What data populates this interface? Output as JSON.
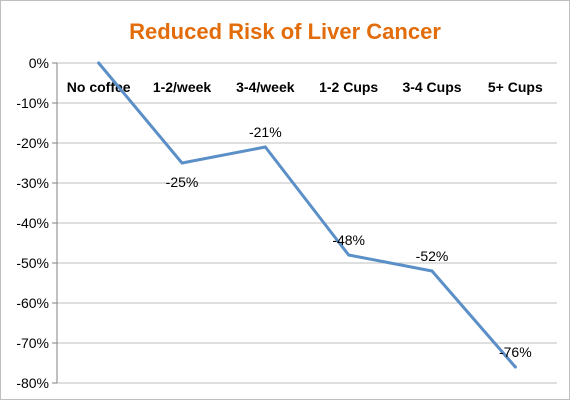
{
  "chart_data": {
    "type": "line",
    "title": "Reduced Risk of Liver Cancer",
    "categories": [
      "No coffee",
      "1-2/week",
      "3-4/week",
      "1-2 Cups",
      "3-4 Cups",
      "5+ Cups"
    ],
    "values": [
      0,
      -25,
      -21,
      -48,
      -52,
      -76
    ],
    "data_labels": [
      "",
      "-25%",
      "-21%",
      "-48%",
      "-52%",
      "-76%"
    ],
    "y_ticks": [
      0,
      -10,
      -20,
      -30,
      -40,
      -50,
      -60,
      -70,
      -80
    ],
    "y_tick_labels": [
      "0%",
      "-10%",
      "-20%",
      "-30%",
      "-40%",
      "-50%",
      "-60%",
      "-70%",
      "-80%"
    ],
    "ylim": [
      -80,
      0
    ],
    "grid": true,
    "legend": "none",
    "xlabel": "",
    "ylabel": "",
    "category_labels_position": "top",
    "colors": {
      "title": "#e36c0a",
      "line": "#5b8fc7",
      "grid": "#bfbfbf",
      "axis": "#808080"
    }
  }
}
